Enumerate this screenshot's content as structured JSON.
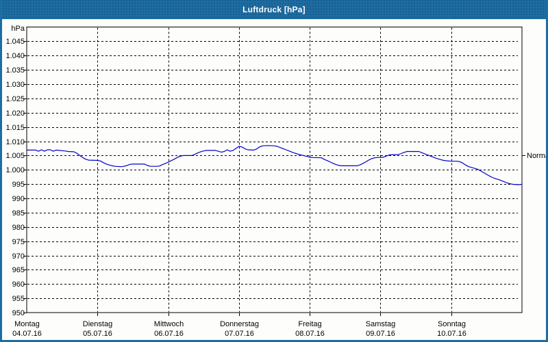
{
  "window": {
    "title": "Luftdruck [hPa]"
  },
  "colors": {
    "titlebar": "#1d6da3",
    "line": "#0000cc",
    "grid": "#000000",
    "text": "#000000",
    "background": "#fdfdfb"
  },
  "chart_data": {
    "type": "line",
    "title": "Luftdruck [hPa]",
    "y_unit_label": "hPa",
    "ylim": [
      950,
      1050
    ],
    "grid": "dashed",
    "legend_position": "none",
    "y_ticks": [
      {
        "value": 950,
        "label": "950"
      },
      {
        "value": 955,
        "label": "955"
      },
      {
        "value": 960,
        "label": "960"
      },
      {
        "value": 965,
        "label": "965"
      },
      {
        "value": 970,
        "label": "970"
      },
      {
        "value": 975,
        "label": "975"
      },
      {
        "value": 980,
        "label": "980"
      },
      {
        "value": 985,
        "label": "985"
      },
      {
        "value": 990,
        "label": "990"
      },
      {
        "value": 995,
        "label": "995"
      },
      {
        "value": 1000,
        "label": "1.000"
      },
      {
        "value": 1005,
        "label": "1.005"
      },
      {
        "value": 1010,
        "label": "1.010"
      },
      {
        "value": 1015,
        "label": "1.015"
      },
      {
        "value": 1020,
        "label": "1.020"
      },
      {
        "value": 1025,
        "label": "1.025"
      },
      {
        "value": 1030,
        "label": "1.030"
      },
      {
        "value": 1035,
        "label": "1.035"
      },
      {
        "value": 1040,
        "label": "1.040"
      },
      {
        "value": 1045,
        "label": "1.045"
      }
    ],
    "x_days": [
      {
        "name": "Montag",
        "date": "04.07.16"
      },
      {
        "name": "Dienstag",
        "date": "05.07.16"
      },
      {
        "name": "Mittwoch",
        "date": "06.07.16"
      },
      {
        "name": "Donnerstag",
        "date": "07.07.16"
      },
      {
        "name": "Freitag",
        "date": "08.07.16"
      },
      {
        "name": "Samstag",
        "date": "09.07.16"
      },
      {
        "name": "Sonntag",
        "date": "10.07.16"
      }
    ],
    "x_range_hours": [
      0,
      168
    ],
    "normal_marker": {
      "label": "Normal",
      "value": 1005
    },
    "series": [
      {
        "name": "Luftdruck",
        "color": "#0000cc",
        "points": [
          [
            0,
            1006.9
          ],
          [
            2,
            1006.9
          ],
          [
            3,
            1006.9
          ],
          [
            4,
            1006.5
          ],
          [
            5,
            1007
          ],
          [
            6,
            1006.5
          ],
          [
            7,
            1007
          ],
          [
            8,
            1007
          ],
          [
            9,
            1006.5
          ],
          [
            10,
            1006.9
          ],
          [
            11,
            1006.8
          ],
          [
            13,
            1006.6
          ],
          [
            14,
            1006.4
          ],
          [
            16,
            1006.3
          ],
          [
            17,
            1005.8
          ],
          [
            18,
            1005.0
          ],
          [
            19,
            1004.3
          ],
          [
            20,
            1003.7
          ],
          [
            21,
            1003.4
          ],
          [
            24,
            1003.3
          ],
          [
            25,
            1003.1
          ],
          [
            26,
            1002.5
          ],
          [
            27,
            1002.0
          ],
          [
            28,
            1001.7
          ],
          [
            29,
            1001.4
          ],
          [
            30,
            1001.2
          ],
          [
            32,
            1001.1
          ],
          [
            33,
            1001.2
          ],
          [
            34,
            1001.5
          ],
          [
            35,
            1001.9
          ],
          [
            36,
            1002.0
          ],
          [
            40,
            1002.0
          ],
          [
            41,
            1001.5
          ],
          [
            42,
            1001.2
          ],
          [
            44,
            1001.2
          ],
          [
            45,
            1001.3
          ],
          [
            46,
            1001.8
          ],
          [
            47,
            1002.2
          ],
          [
            48,
            1002.7
          ],
          [
            49,
            1003.2
          ],
          [
            50,
            1003.7
          ],
          [
            51,
            1004.3
          ],
          [
            52,
            1004.7
          ],
          [
            53,
            1005.0
          ],
          [
            56,
            1005.0
          ],
          [
            57,
            1005.4
          ],
          [
            58,
            1005.9
          ],
          [
            59,
            1006.3
          ],
          [
            60,
            1006.6
          ],
          [
            61,
            1006.8
          ],
          [
            64,
            1006.8
          ],
          [
            65,
            1006.5
          ],
          [
            66,
            1006.2
          ],
          [
            67,
            1006.4
          ],
          [
            68,
            1007.0
          ],
          [
            69,
            1006.5
          ],
          [
            70,
            1006.8
          ],
          [
            71,
            1007.5
          ],
          [
            72,
            1008.2
          ],
          [
            73,
            1008.0
          ],
          [
            74,
            1007.4
          ],
          [
            75,
            1007.0
          ],
          [
            77,
            1006.9
          ],
          [
            78,
            1007.3
          ],
          [
            79,
            1008.0
          ],
          [
            80,
            1008.4
          ],
          [
            82,
            1008.5
          ],
          [
            84,
            1008.4
          ],
          [
            85,
            1008.2
          ],
          [
            86,
            1007.8
          ],
          [
            87,
            1007.4
          ],
          [
            88,
            1007.0
          ],
          [
            89,
            1006.6
          ],
          [
            90,
            1006.2
          ],
          [
            91,
            1005.8
          ],
          [
            92,
            1005.5
          ],
          [
            93,
            1005.2
          ],
          [
            95,
            1004.7
          ],
          [
            96,
            1004.4
          ],
          [
            97,
            1004.3
          ],
          [
            100,
            1004.2
          ],
          [
            101,
            1003.6
          ],
          [
            102,
            1003.2
          ],
          [
            103,
            1002.7
          ],
          [
            104,
            1002.2
          ],
          [
            105,
            1001.8
          ],
          [
            106,
            1001.5
          ],
          [
            107,
            1001.4
          ],
          [
            112,
            1001.4
          ],
          [
            113,
            1001.7
          ],
          [
            114,
            1002.2
          ],
          [
            115,
            1002.8
          ],
          [
            116,
            1003.4
          ],
          [
            117,
            1003.9
          ],
          [
            118,
            1004.2
          ],
          [
            119,
            1004.3
          ],
          [
            121,
            1004.4
          ],
          [
            122,
            1004.8
          ],
          [
            123,
            1005.2
          ],
          [
            124,
            1005.3
          ],
          [
            126,
            1005.3
          ],
          [
            127,
            1005.7
          ],
          [
            128,
            1006.1
          ],
          [
            129,
            1006.4
          ],
          [
            133,
            1006.4
          ],
          [
            134,
            1006.0
          ],
          [
            135,
            1005.6
          ],
          [
            136,
            1005.2
          ],
          [
            137,
            1004.8
          ],
          [
            138,
            1004.4
          ],
          [
            139,
            1004.0
          ],
          [
            140,
            1003.7
          ],
          [
            141,
            1003.4
          ],
          [
            142,
            1003.2
          ],
          [
            144,
            1003.0
          ],
          [
            146,
            1003.0
          ],
          [
            147,
            1002.8
          ],
          [
            148,
            1002.3
          ],
          [
            149,
            1001.6
          ],
          [
            150,
            1001.1
          ],
          [
            151,
            1000.8
          ],
          [
            152,
            1000.5
          ],
          [
            153,
            1000.2
          ],
          [
            154,
            999.6
          ],
          [
            155,
            999.0
          ],
          [
            156,
            998.4
          ],
          [
            157,
            997.8
          ],
          [
            158,
            997.3
          ],
          [
            159,
            996.9
          ],
          [
            160,
            996.6
          ],
          [
            161,
            996.2
          ],
          [
            162,
            995.8
          ],
          [
            163,
            995.4
          ],
          [
            164,
            995.1
          ],
          [
            165,
            994.9
          ],
          [
            167,
            994.8
          ],
          [
            168,
            994.9
          ]
        ]
      }
    ]
  }
}
